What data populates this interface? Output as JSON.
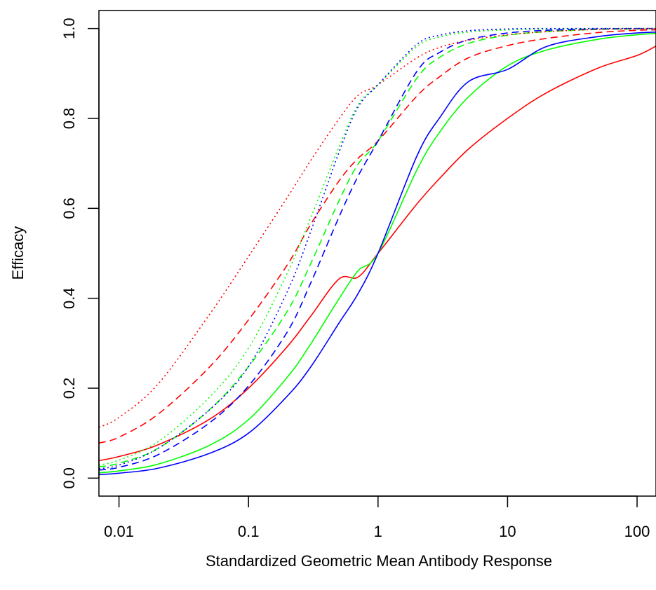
{
  "chart_data": {
    "type": "line",
    "title": "",
    "xlabel": "Standardized Geometric Mean Antibody Response",
    "ylabel": "Efficacy",
    "x_scale": "log",
    "xlim": [
      0.007,
      140
    ],
    "ylim": [
      -0.04,
      1.04
    ],
    "x_ticks": [
      {
        "value": 0.01,
        "label": "0.01"
      },
      {
        "value": 0.1,
        "label": "0.1"
      },
      {
        "value": 1,
        "label": "1"
      },
      {
        "value": 10,
        "label": "10"
      },
      {
        "value": 100,
        "label": "100"
      }
    ],
    "y_ticks": [
      {
        "value": 0.0,
        "label": "0.0"
      },
      {
        "value": 0.2,
        "label": "0.2"
      },
      {
        "value": 0.4,
        "label": "0.4"
      },
      {
        "value": 0.6,
        "label": "0.6"
      },
      {
        "value": 0.8,
        "label": "0.8"
      },
      {
        "value": 1.0,
        "label": "1.0"
      }
    ],
    "grid": false,
    "legend": "none",
    "x": [
      0.007,
      0.01,
      0.02,
      0.05,
      0.1,
      0.2,
      0.3,
      0.5,
      0.7,
      1,
      2,
      3,
      5,
      10,
      20,
      50,
      100,
      140
    ],
    "series": [
      {
        "color": "#ff0000",
        "dash": "solid",
        "values": [
          0.039,
          0.048,
          0.074,
          0.131,
          0.2,
          0.293,
          0.359,
          0.443,
          0.447,
          0.5,
          0.61,
          0.667,
          0.732,
          0.8,
          0.857,
          0.912,
          0.94,
          0.961
        ]
      },
      {
        "color": "#00ff00",
        "dash": "solid",
        "values": [
          0.012,
          0.016,
          0.031,
          0.073,
          0.13,
          0.225,
          0.297,
          0.399,
          0.461,
          0.5,
          0.686,
          0.77,
          0.848,
          0.917,
          0.952,
          0.976,
          0.986,
          0.989
        ]
      },
      {
        "color": "#0000ff",
        "dash": "solid",
        "values": [
          0.008,
          0.011,
          0.022,
          0.055,
          0.1,
          0.183,
          0.246,
          0.345,
          0.41,
          0.5,
          0.717,
          0.802,
          0.882,
          0.909,
          0.96,
          0.982,
          0.99,
          0.992
        ]
      },
      {
        "color": "#ff0000",
        "dash": "dashed",
        "values": [
          0.078,
          0.091,
          0.142,
          0.247,
          0.352,
          0.475,
          0.563,
          0.661,
          0.711,
          0.75,
          0.85,
          0.893,
          0.935,
          0.962,
          0.978,
          0.991,
          0.996,
          0.997
        ]
      },
      {
        "color": "#00ff00",
        "dash": "dashed",
        "values": [
          0.025,
          0.033,
          0.066,
          0.152,
          0.248,
          0.372,
          0.475,
          0.617,
          0.698,
          0.75,
          0.89,
          0.936,
          0.967,
          0.985,
          0.993,
          0.998,
          0.999,
          1.0
        ]
      },
      {
        "color": "#0000ff",
        "dash": "dashed",
        "values": [
          0.018,
          0.024,
          0.052,
          0.123,
          0.205,
          0.326,
          0.432,
          0.581,
          0.671,
          0.75,
          0.905,
          0.947,
          0.975,
          0.99,
          0.996,
          0.999,
          1.0,
          1.0
        ]
      },
      {
        "color": "#ff0000",
        "dash": "dotted",
        "values": [
          0.113,
          0.135,
          0.209,
          0.364,
          0.493,
          0.625,
          0.705,
          0.799,
          0.851,
          0.875,
          0.935,
          0.958,
          0.974,
          0.986,
          0.993,
          0.998,
          0.999,
          1.0
        ]
      },
      {
        "color": "#00ff00",
        "dash": "dotted",
        "values": [
          0.029,
          0.04,
          0.081,
          0.18,
          0.289,
          0.457,
          0.577,
          0.737,
          0.83,
          0.875,
          0.96,
          0.981,
          0.992,
          0.997,
          0.999,
          1.0,
          1.0,
          1.0
        ]
      },
      {
        "color": "#0000ff",
        "dash": "dotted",
        "values": [
          0.021,
          0.029,
          0.066,
          0.152,
          0.248,
          0.416,
          0.546,
          0.725,
          0.825,
          0.875,
          0.965,
          0.985,
          0.995,
          0.999,
          1.0,
          1.0,
          1.0,
          1.0
        ]
      }
    ]
  }
}
